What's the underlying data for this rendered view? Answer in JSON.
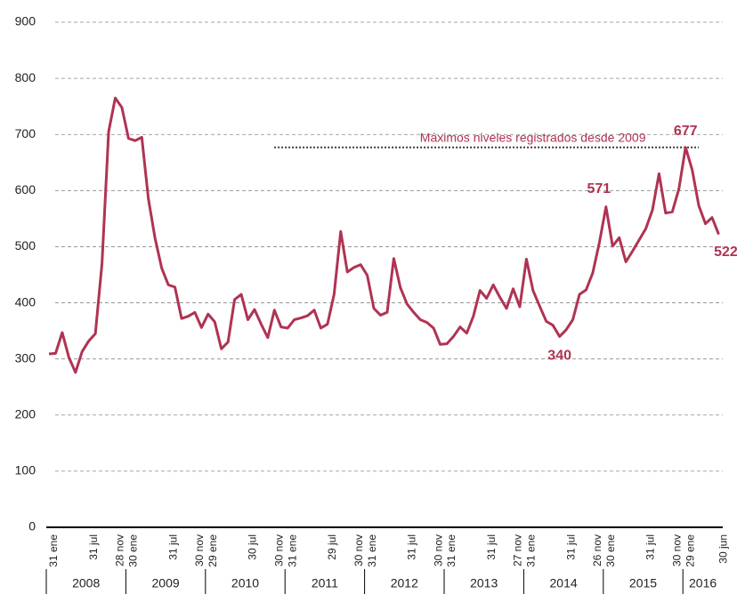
{
  "chart_data": {
    "type": "line",
    "categories": [
      "31 ene",
      null,
      null,
      null,
      null,
      null,
      "31 jul",
      null,
      null,
      null,
      "28 nov",
      null,
      "30 ene",
      null,
      null,
      null,
      null,
      null,
      "31 jul",
      null,
      null,
      null,
      "30 nov",
      null,
      "29 ene",
      null,
      null,
      null,
      null,
      null,
      "30 jul",
      null,
      null,
      null,
      "30 nov",
      null,
      "31 ene",
      null,
      null,
      null,
      null,
      null,
      "29 jul",
      null,
      null,
      null,
      "30 nov",
      null,
      "31 ene",
      null,
      null,
      null,
      null,
      null,
      "31 jul",
      null,
      null,
      null,
      "30 nov",
      null,
      "31 ene",
      null,
      null,
      null,
      null,
      null,
      "31 jul",
      null,
      null,
      null,
      "27 nov",
      null,
      "31 ene",
      null,
      null,
      null,
      null,
      null,
      "31 jul",
      null,
      null,
      null,
      "26 nov",
      null,
      "30 ene",
      null,
      null,
      null,
      null,
      null,
      "31 jul",
      null,
      null,
      null,
      "30 nov",
      null,
      "29 ene",
      null,
      null,
      null,
      null,
      "30 jun"
    ],
    "years": [
      "2008",
      "2009",
      "2010",
      "2011",
      "2012",
      "2013",
      "2014",
      "2015",
      "2016"
    ],
    "values": [
      309,
      310,
      347,
      303,
      276,
      313,
      332,
      345,
      470,
      705,
      765,
      748,
      693,
      689,
      695,
      585,
      515,
      462,
      432,
      428,
      372,
      376,
      383,
      356,
      380,
      366,
      318,
      330,
      406,
      415,
      370,
      388,
      362,
      338,
      387,
      357,
      355,
      370,
      373,
      377,
      387,
      355,
      362,
      415,
      527,
      455,
      463,
      468,
      449,
      390,
      378,
      383,
      479,
      427,
      398,
      383,
      370,
      365,
      355,
      326,
      327,
      340,
      357,
      346,
      376,
      422,
      408,
      432,
      410,
      390,
      425,
      393,
      478,
      422,
      394,
      367,
      360,
      340,
      352,
      370,
      415,
      423,
      453,
      507,
      571,
      501,
      516,
      473,
      492,
      512,
      532,
      565,
      630,
      560,
      562,
      603,
      677,
      637,
      573,
      541,
      552,
      522
    ],
    "value_labels": [
      null,
      null,
      null,
      null,
      null,
      null,
      null,
      null,
      null,
      null,
      null,
      null,
      null,
      null,
      null,
      null,
      null,
      null,
      null,
      null,
      null,
      null,
      null,
      null,
      null,
      null,
      null,
      null,
      null,
      null,
      null,
      null,
      null,
      null,
      null,
      null,
      null,
      null,
      null,
      null,
      null,
      null,
      null,
      null,
      null,
      null,
      null,
      null,
      null,
      null,
      null,
      null,
      null,
      null,
      null,
      null,
      null,
      null,
      null,
      null,
      null,
      null,
      null,
      null,
      null,
      null,
      null,
      null,
      null,
      null,
      null,
      null,
      null,
      null,
      null,
      null,
      null,
      "340",
      null,
      null,
      null,
      null,
      null,
      null,
      "571",
      null,
      null,
      null,
      null,
      null,
      null,
      null,
      null,
      null,
      null,
      null,
      "677",
      null,
      null,
      null,
      null,
      "522"
    ],
    "color": "#b03352",
    "reference_line": {
      "value": 677,
      "label": "Máximos niveles registrados desde 2009"
    },
    "ylim": [
      0,
      900
    ],
    "yticks": [
      0,
      100,
      200,
      300,
      400,
      500,
      600,
      700,
      800,
      900
    ],
    "grid": true
  }
}
